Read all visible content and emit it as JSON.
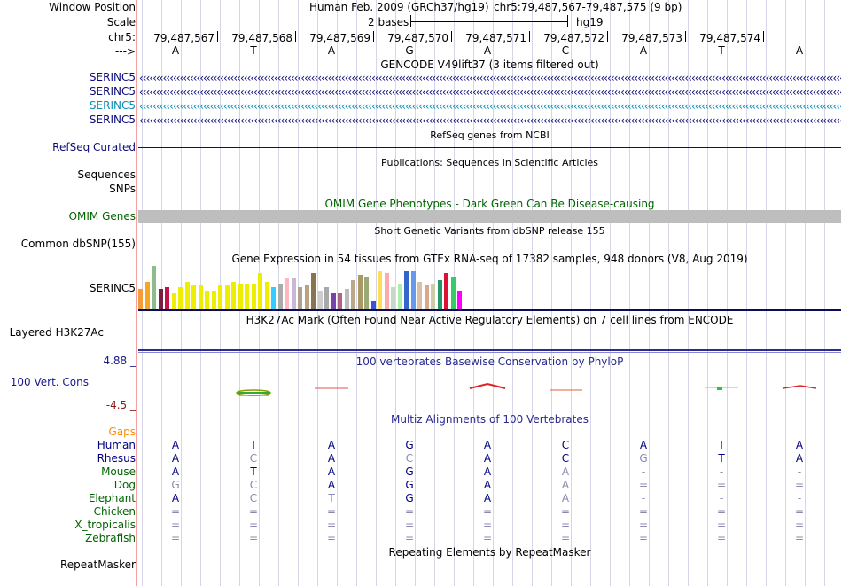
{
  "header": {
    "window_position_label": "Window Position",
    "assembly": "Human Feb. 2009 (GRCh37/hg19)",
    "position": "chr5:79,487,567-79,487,575 (9 bp)",
    "scale_label": "Scale",
    "scale_text": "2 bases",
    "scale_db": "hg19",
    "chrom_label": "chr5:",
    "strand_label": "--->",
    "coordinates": [
      "79,487,567",
      "79,487,568",
      "79,487,569",
      "79,487,570",
      "79,487,571",
      "79,487,572",
      "79,487,573",
      "79,487,574"
    ],
    "bases": [
      "A",
      "T",
      "A",
      "G",
      "A",
      "C",
      "A",
      "T",
      "A"
    ]
  },
  "tracks": {
    "gencode_title": "GENCODE V49lift37 (3 items filtered out)",
    "gencode_items": [
      "SERINC5",
      "SERINC5",
      "SERINC5",
      "SERINC5"
    ],
    "refseq_label": "RefSeq Curated",
    "refseq_title": "RefSeq genes from NCBI",
    "pubs_title": "Publications: Sequences in Scientific Articles",
    "sequences_label": "Sequences",
    "snps_label": "SNPs",
    "omim_title": "OMIM Gene Phenotypes - Dark Green Can Be Disease-causing",
    "omim_label": "OMIM Genes",
    "dbsnp_title": "Short Genetic Variants from dbSNP release 155",
    "dbsnp_label": "Common dbSNP(155)",
    "gtex_title": "Gene Expression in 54 tissues from GTEx RNA-seq of 17382 samples, 948 donors (V8, Aug 2019)",
    "gtex_label": "SERINC5",
    "h3k27_title": "H3K27Ac Mark (Often Found Near Active Regulatory Elements) on 7 cell lines from ENCODE",
    "h3k27_label": "Layered H3K27Ac",
    "cons_title": "100 vertebrates Basewise Conservation by PhyloP",
    "cons_label": "100 Vert. Cons",
    "cons_max": "4.88 _",
    "cons_min": "-4.5 _",
    "multiz_title": "Multiz Alignments of 100 Vertebrates",
    "gaps_label": "Gaps",
    "repeat_title": "Repeating Elements by RepeatMasker",
    "repeat_label": "RepeatMasker"
  },
  "gtex_bars": [
    {
      "h": 22,
      "c": "#f59b3a"
    },
    {
      "h": 30,
      "c": "#f5a623"
    },
    {
      "h": 48,
      "c": "#8fbc8f"
    },
    {
      "h": 22,
      "c": "#7a1f3d"
    },
    {
      "h": 24,
      "c": "#c0134c"
    },
    {
      "h": 18,
      "c": "#eeee00"
    },
    {
      "h": 24,
      "c": "#eeee00"
    },
    {
      "h": 30,
      "c": "#eeee00"
    },
    {
      "h": 26,
      "c": "#eeee00"
    },
    {
      "h": 26,
      "c": "#eeee00"
    },
    {
      "h": 20,
      "c": "#eeee00"
    },
    {
      "h": 20,
      "c": "#eeee00"
    },
    {
      "h": 26,
      "c": "#eeee00"
    },
    {
      "h": 26,
      "c": "#eeee00"
    },
    {
      "h": 30,
      "c": "#eeee00"
    },
    {
      "h": 28,
      "c": "#eeee00"
    },
    {
      "h": 28,
      "c": "#eeee00"
    },
    {
      "h": 28,
      "c": "#eeee00"
    },
    {
      "h": 40,
      "c": "#eeee00"
    },
    {
      "h": 30,
      "c": "#eeee00"
    },
    {
      "h": 24,
      "c": "#33ccff"
    },
    {
      "h": 28,
      "c": "#aaaaaa"
    },
    {
      "h": 34,
      "c": "#ffb6c1"
    },
    {
      "h": 34,
      "c": "#c8b8d8"
    },
    {
      "h": 24,
      "c": "#b0a090"
    },
    {
      "h": 26,
      "c": "#b9a37c"
    },
    {
      "h": 40,
      "c": "#8a7353"
    },
    {
      "h": 20,
      "c": "#cccccc"
    },
    {
      "h": 24,
      "c": "#a8a8a8"
    },
    {
      "h": 18,
      "c": "#7744aa"
    },
    {
      "h": 18,
      "c": "#aa6688"
    },
    {
      "h": 22,
      "c": "#bbbbbb"
    },
    {
      "h": 32,
      "c": "#bba888"
    },
    {
      "h": 38,
      "c": "#aa9966"
    },
    {
      "h": 36,
      "c": "#99aa77"
    },
    {
      "h": 8,
      "c": "#3355dd"
    },
    {
      "h": 42,
      "c": "#ffdd55"
    },
    {
      "h": 40,
      "c": "#ffaaaa"
    },
    {
      "h": 24,
      "c": "#c8d8c8"
    },
    {
      "h": 28,
      "c": "#aaeeaa"
    },
    {
      "h": 42,
      "c": "#3366cc"
    },
    {
      "h": 42,
      "c": "#6699ee"
    },
    {
      "h": 30,
      "c": "#d8c0a8"
    },
    {
      "h": 26,
      "c": "#d8a888"
    },
    {
      "h": 28,
      "c": "#ccccaa"
    },
    {
      "h": 32,
      "c": "#229966"
    },
    {
      "h": 40,
      "c": "#dd1133"
    },
    {
      "h": 36,
      "c": "#33cc66"
    },
    {
      "h": 20,
      "c": "#ff00ff"
    }
  ],
  "multiz": {
    "species": [
      {
        "name": "Human",
        "color": "#000080",
        "bases": [
          "A",
          "T",
          "A",
          "G",
          "A",
          "C",
          "A",
          "T",
          "A"
        ],
        "dim": [
          0,
          0,
          0,
          0,
          0,
          0,
          0,
          0,
          0
        ]
      },
      {
        "name": "Rhesus",
        "color": "#000080",
        "bases": [
          "A",
          "C",
          "A",
          "C",
          "A",
          "C",
          "G",
          "T",
          "A"
        ],
        "dim": [
          0,
          1,
          0,
          1,
          0,
          0,
          1,
          0,
          0
        ]
      },
      {
        "name": "Mouse",
        "color": "#006400",
        "bases": [
          "A",
          "T",
          "A",
          "G",
          "A",
          "A",
          "-",
          "-",
          "-"
        ],
        "dim": [
          0,
          0,
          0,
          0,
          0,
          1,
          1,
          1,
          1
        ]
      },
      {
        "name": "Dog",
        "color": "#006400",
        "bases": [
          "G",
          "C",
          "A",
          "G",
          "A",
          "A",
          "=",
          "=",
          "="
        ],
        "dim": [
          1,
          1,
          0,
          0,
          0,
          1,
          1,
          1,
          1
        ]
      },
      {
        "name": "Elephant",
        "color": "#006400",
        "bases": [
          "A",
          "C",
          "T",
          "G",
          "A",
          "A",
          "-",
          "-",
          "-"
        ],
        "dim": [
          0,
          1,
          1,
          0,
          0,
          1,
          1,
          1,
          1
        ]
      },
      {
        "name": "Chicken",
        "color": "#006400",
        "bases": [
          "=",
          "=",
          "=",
          "=",
          "=",
          "=",
          "=",
          "=",
          "="
        ],
        "dim": [
          1,
          1,
          1,
          1,
          1,
          1,
          1,
          1,
          1
        ]
      },
      {
        "name": "X_tropicalis",
        "color": "#006400",
        "bases": [
          "=",
          "=",
          "=",
          "=",
          "=",
          "=",
          "=",
          "=",
          "="
        ],
        "dim": [
          1,
          1,
          1,
          1,
          1,
          1,
          1,
          1,
          1
        ]
      },
      {
        "name": "Zebrafish",
        "color": "#006400",
        "bases": [
          "=",
          "=",
          "=",
          "=",
          "=",
          "=",
          "=",
          "=",
          "="
        ],
        "dim": [
          1,
          1,
          1,
          1,
          1,
          1,
          1,
          1,
          1
        ]
      }
    ]
  },
  "colors": {
    "gencode_dark": "#0c0c78",
    "gencode_light": "#0a8cb4",
    "refseq": "#0c0c78",
    "omim": "#bebebe",
    "omim_text": "#006400",
    "cons_label": "#1a1a8c",
    "cons_min": "#8b1a1a",
    "gaps": "#ff8c00"
  }
}
